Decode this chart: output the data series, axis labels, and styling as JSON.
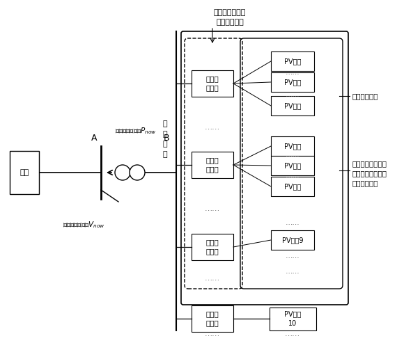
{
  "bg_color": "#ffffff",
  "line_color": "#000000",
  "gray_color": "#666666",
  "fig_width": 5.7,
  "fig_height": 4.93,
  "dpi": 100,
  "top_label_line1": "一个机群等值成",
  "top_label_line2": "一台光伏机组",
  "busbar_label": "汇\n集\n母\n线",
  "grid_label": "电网",
  "label_A": "A",
  "label_B": "B",
  "label_Pnow": "并网点有功注入$P_{now}$",
  "label_Vnow": "并网点母线电压$V_{now}$",
  "label_group": "某一光伏机群",
  "label_equiv_1": "同一群逆变器下所",
  "label_equiv_2": "有光伏阵列等值成",
  "label_equiv_3": "一台光伏阵列",
  "inv_label": "逆变器\n及控制",
  "pv_label": "PV阵列",
  "pv_label_9": "PV阵列9",
  "pv_label_10": "PV阵列\n10",
  "dots": "……"
}
